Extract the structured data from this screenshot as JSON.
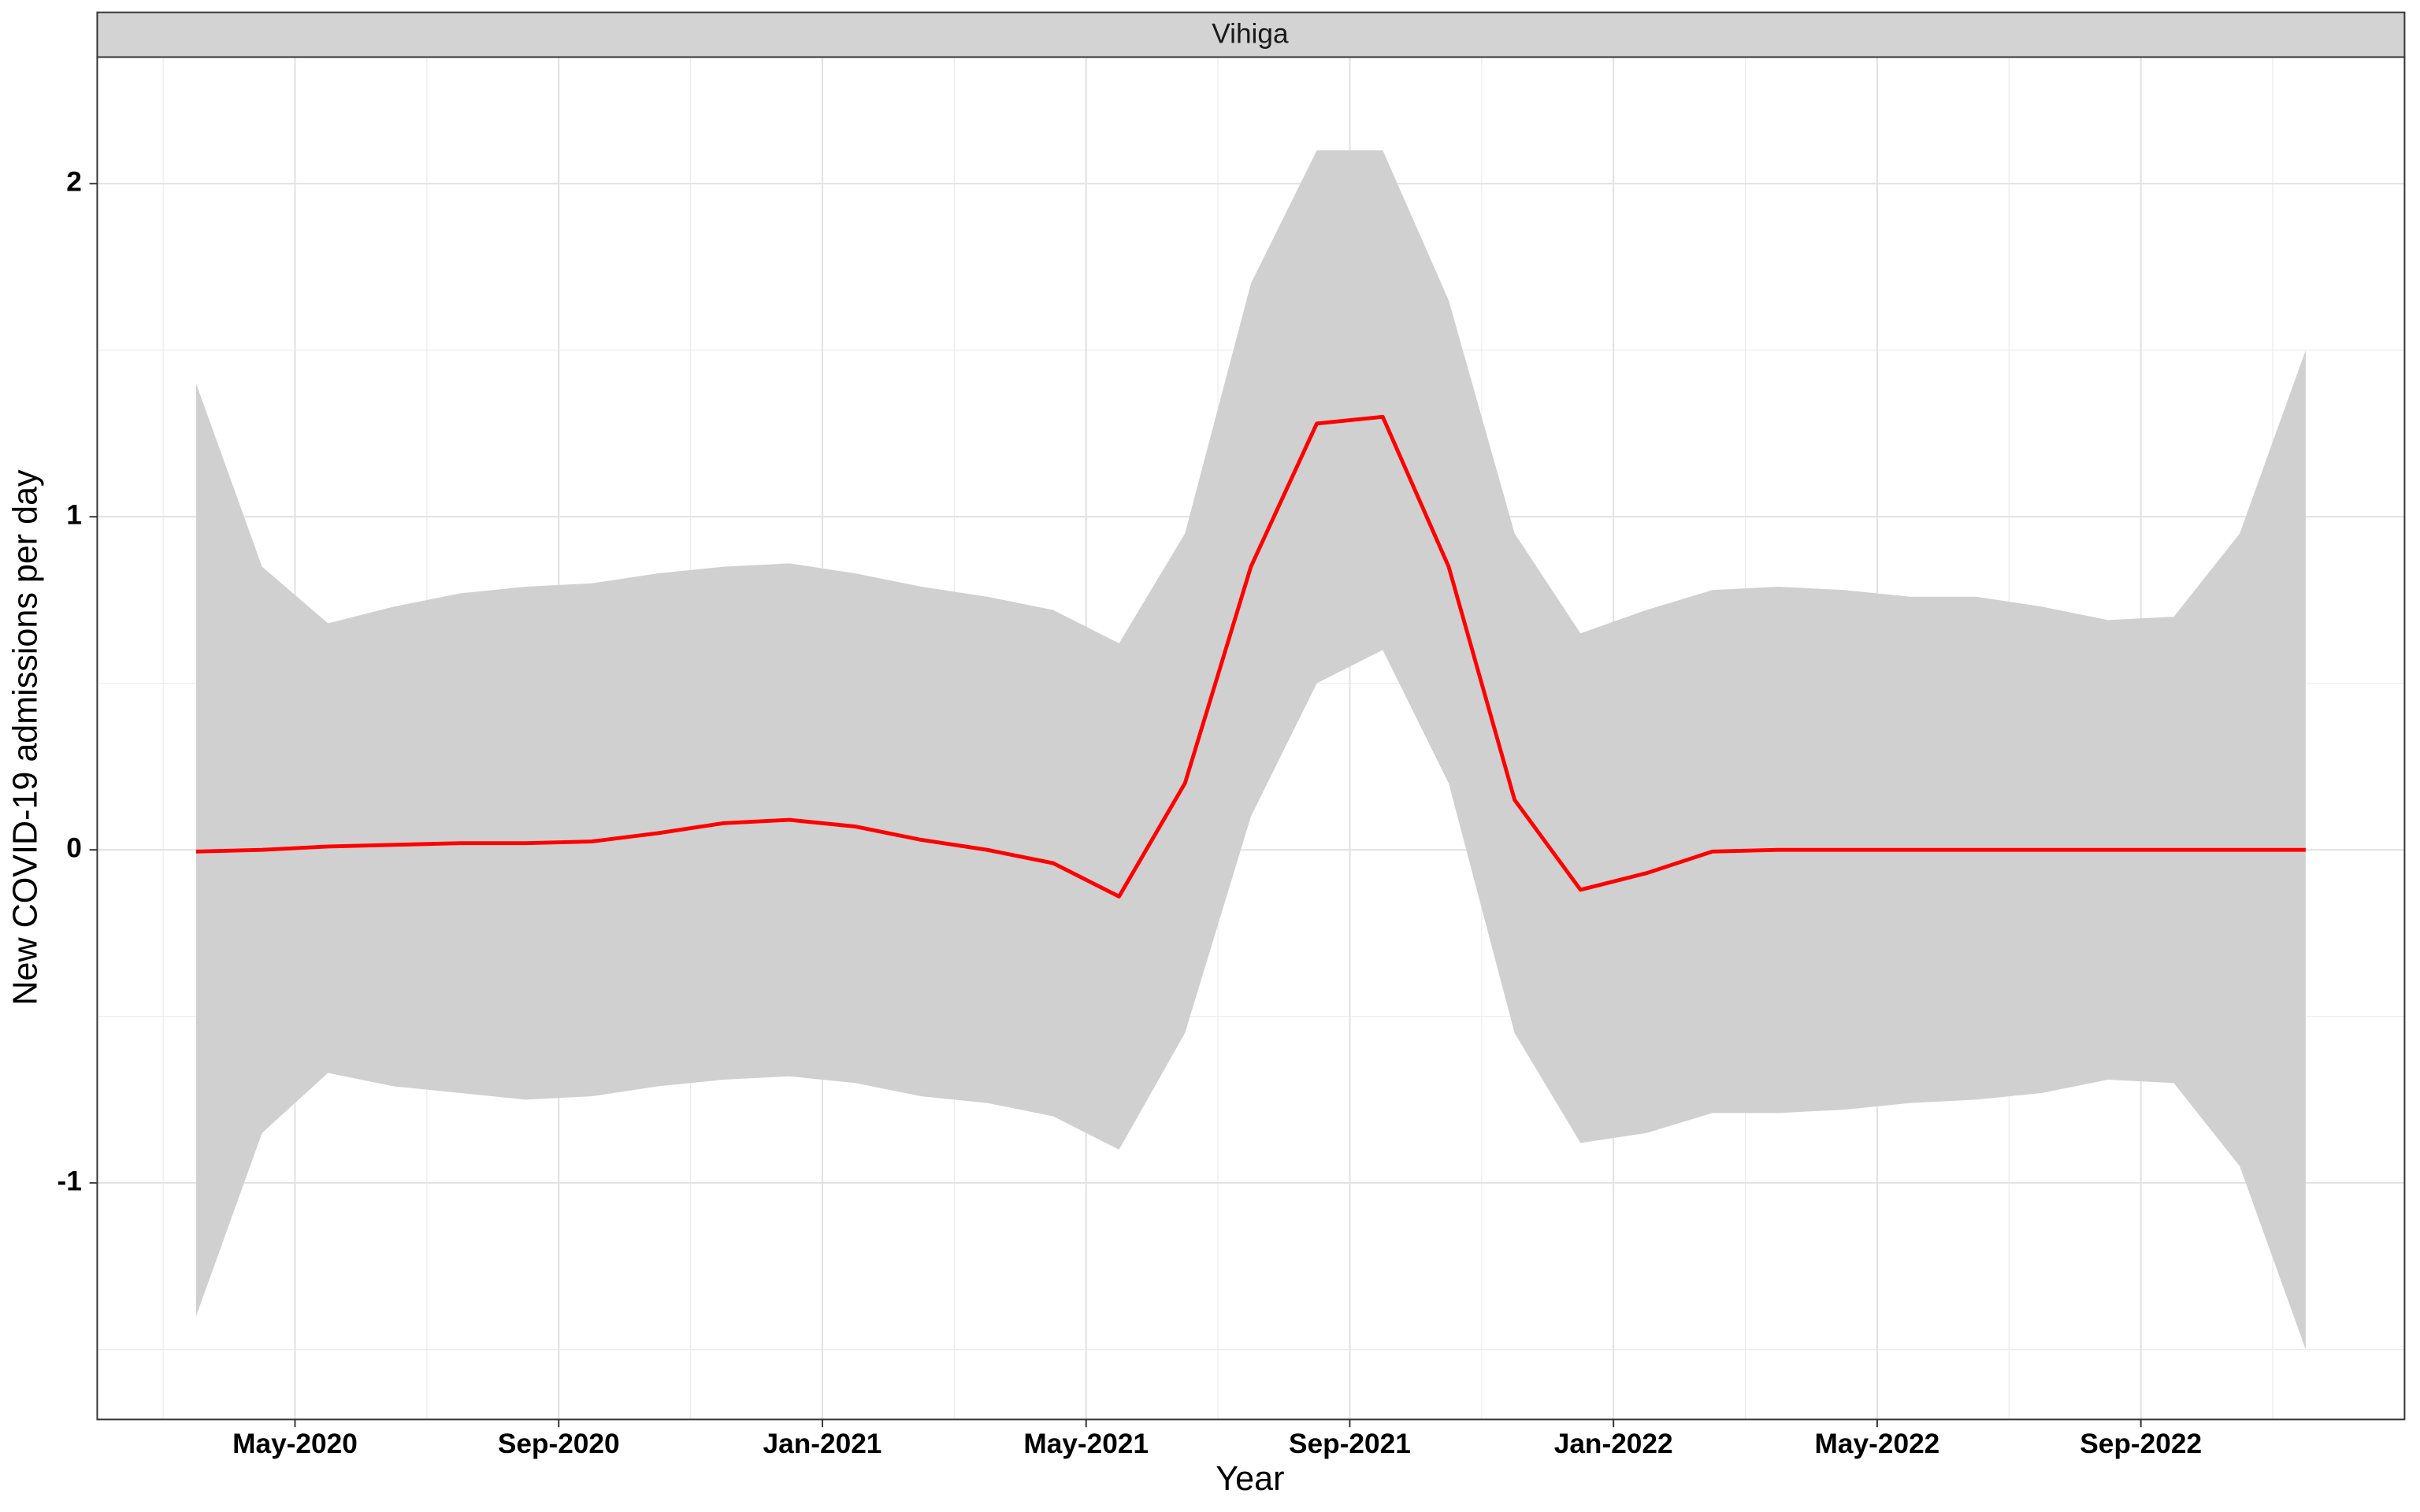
{
  "chart_data": {
    "type": "line",
    "panel_title": "Vihiga",
    "xlabel": "Year",
    "ylabel": "New COVID-19 admissions per day",
    "x": [
      "2020-03",
      "2020-04",
      "2020-05",
      "2020-06",
      "2020-07",
      "2020-08",
      "2020-09",
      "2020-10",
      "2020-11",
      "2020-12",
      "2021-01",
      "2021-02",
      "2021-03",
      "2021-04",
      "2021-05",
      "2021-06",
      "2021-07",
      "2021-08",
      "2021-09",
      "2021-10",
      "2021-11",
      "2021-12",
      "2022-01",
      "2022-02",
      "2022-03",
      "2022-04",
      "2022-05",
      "2022-06",
      "2022-07",
      "2022-08",
      "2022-09",
      "2022-10",
      "2022-11"
    ],
    "series": [
      {
        "name": "mean",
        "color": "#ff0000",
        "values": [
          -0.005,
          0.0,
          0.01,
          0.015,
          0.02,
          0.02,
          0.025,
          0.05,
          0.08,
          0.09,
          0.07,
          0.03,
          0.0,
          -0.04,
          -0.14,
          0.2,
          0.85,
          1.28,
          1.3,
          0.85,
          0.15,
          -0.12,
          -0.07,
          -0.005,
          0,
          0,
          0,
          0,
          0,
          0,
          0,
          0,
          0
        ]
      }
    ],
    "band": {
      "color": "#d0d0d0",
      "upper": [
        1.4,
        0.85,
        0.68,
        0.73,
        0.77,
        0.79,
        0.8,
        0.83,
        0.85,
        0.86,
        0.83,
        0.79,
        0.76,
        0.72,
        0.62,
        0.95,
        1.7,
        2.1,
        2.1,
        1.65,
        0.95,
        0.65,
        0.72,
        0.78,
        0.79,
        0.78,
        0.76,
        0.76,
        0.73,
        0.69,
        0.7,
        0.95,
        1.5
      ],
      "lower": [
        -1.4,
        -0.85,
        -0.67,
        -0.71,
        -0.73,
        -0.75,
        -0.74,
        -0.71,
        -0.69,
        -0.68,
        -0.7,
        -0.74,
        -0.76,
        -0.8,
        -0.9,
        -0.55,
        0.1,
        0.5,
        0.6,
        0.2,
        -0.55,
        -0.88,
        -0.85,
        -0.79,
        -0.79,
        -0.78,
        -0.76,
        -0.75,
        -0.73,
        -0.69,
        -0.7,
        -0.95,
        -1.5
      ]
    },
    "xlim": [
      "2020-02",
      "2023-01"
    ],
    "xticks": [
      {
        "value": "2020-05",
        "label": "May-2020"
      },
      {
        "value": "2020-09",
        "label": "Sep-2020"
      },
      {
        "value": "2021-01",
        "label": "Jan-2021"
      },
      {
        "value": "2021-05",
        "label": "May-2021"
      },
      {
        "value": "2021-09",
        "label": "Sep-2021"
      },
      {
        "value": "2022-01",
        "label": "Jan-2022"
      },
      {
        "value": "2022-05",
        "label": "May-2022"
      },
      {
        "value": "2022-09",
        "label": "Sep-2022"
      }
    ],
    "ylim": [
      -1.71,
      2.38
    ],
    "yticks": [
      -1,
      0,
      1,
      2
    ],
    "grid": true
  }
}
